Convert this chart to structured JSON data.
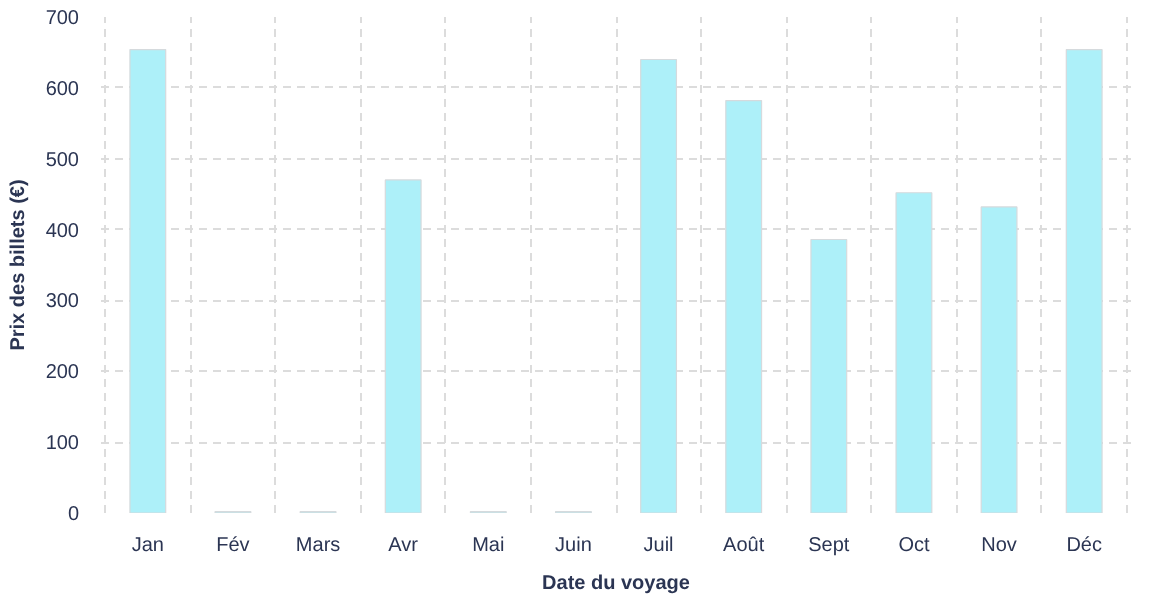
{
  "chart_data": {
    "type": "bar",
    "xlabel": "Date du voyage",
    "ylabel": "Prix des billets (€)",
    "categories": [
      "Jan",
      "Fév",
      "Mars",
      "Avr",
      "Mai",
      "Juin",
      "Juil",
      "Août",
      "Sept",
      "Oct",
      "Nov",
      "Déc"
    ],
    "values": [
      654,
      2,
      2,
      470,
      2,
      2,
      640,
      582,
      386,
      452,
      432,
      654
    ],
    "color": "#adf0f9",
    "ylim": [
      0,
      700
    ],
    "yticks": [
      0,
      100,
      200,
      300,
      400,
      500,
      600,
      700
    ],
    "grid": true
  }
}
